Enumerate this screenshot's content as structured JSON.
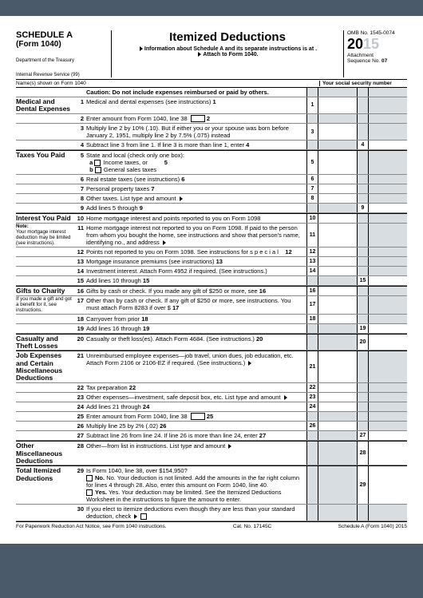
{
  "header": {
    "schedule": "SCHEDULE A",
    "form": "(Form 1040)",
    "dept": "Department of the Treasury",
    "irs": "Internal Revenue Service (99)",
    "title": "Itemized Deductions",
    "info": "Information about Schedule A and its separate instructions is at .",
    "attach": "Attach to Form 1040.",
    "omb": "OMB No. 1545-0074",
    "year_prefix": "20",
    "year_suffix": "15",
    "att": "Attachment",
    "seq": "Sequence No.",
    "seqno": "07"
  },
  "nameline": {
    "left": "Name(s) shown on Form 1040",
    "right": "Your social security number"
  },
  "sections": {
    "medical": "Medical and Dental Expenses",
    "taxes": "Taxes You Paid",
    "interest": "Interest You Paid",
    "interest_note_hdr": "Note:",
    "interest_note": "Your mortgage interest deduction may be limited (see instructions).",
    "gifts": "Gifts to Charity",
    "gifts_note": "If you made a gift and got a benefit for it, see instructions.",
    "casualty": "Casualty and Theft Losses",
    "job": "Job Expenses and Certain Miscellaneous Deductions",
    "other": "Other Miscellaneous Deductions",
    "total": "Total Itemized Deductions"
  },
  "lines": {
    "caution": "Caution: Do not include expenses reimbursed or paid by others.",
    "l1": "Medical and dental expenses (see instructions)",
    "l2": "Enter amount from Form 1040, line 38",
    "l3": "Multiply line 2 by 10% (.10). But if either you or your spouse was born before January 2, 1951, multiply line 2 by 7.5% (.075) instead",
    "l4": "Subtract line 3 from line 1. If line 3 is more than line 1, enter",
    "l5": "State and local (check only one box):",
    "l5a": "Income taxes, or",
    "l5b": "General sales taxes",
    "l6": "Real estate taxes (see instructions)",
    "l7": "Personal property taxes",
    "l8": "Other taxes. List type and amount",
    "l9": "Add lines 5 through",
    "l10": "Home mortgage interest and points reported to you on Form 1098",
    "l11": "Home mortgage interest not reported to you on Form 1098. If paid to the person from whom you bought the home, see instructions and show that person's name, identifying no., and address",
    "l12": "Points not reported to you on Form 1098. See instructions for s  p  e  c  i  a  l",
    "l13": "Mortgage insurance premiums (see instructions)",
    "l14": "Investment interest. Attach Form 4952 if required. (See instructions.)",
    "l15": "Add lines 10 through",
    "l16": "Gifts by cash or check. If you made any gift of $250 or more, see",
    "l17": "Other than by cash or check. If any gift of $250 or more, see instructions. You must attach Form 8283 if over $",
    "l18": "Carryover from prior",
    "l19": "Add lines 16 through",
    "l20": "Casualty or theft loss(es). Attach Form 4684. (See instructions.)",
    "l21": "Unreimbursed employee expenses—job travel, union dues, job education, etc. Attach Form 2106 or 2106-EZ if required. (See instructions.)",
    "l22": "Tax preparation",
    "l23": "Other expenses—investment, safe deposit box, etc. List type and amount",
    "l24": "Add lines 21 through",
    "l25": "Enter amount from Form 1040, line 38",
    "l26": "Multiply line 25 by 2% (.02)",
    "l27": "Subtract line 26 from line 24. If line 26 is more than line 24, enter",
    "l28": "Other—from list in instructions. List type and amount",
    "l29": "Is Form 1040, line 38, over $154,950?",
    "l29no": "No. Your deduction is not limited. Add the amounts in the far right column for lines 4 through 28. Also, enter this amount on Form 1040, line 40.",
    "l29yes": "Yes. Your deduction may be limited. See the Itemized Deductions Worksheet in the instructions to figure the amount to enter.",
    "l30": "If you elect to itemize deductions even though they are less than your standard deduction, check"
  },
  "nums": {
    "n1": "1",
    "n2": "2",
    "n3": "3",
    "n4": "4",
    "n5": "5",
    "n6": "6",
    "n7": "7",
    "n8": "8",
    "n9": "9",
    "n10": "10",
    "n11": "11",
    "n12": "12",
    "n13": "13",
    "n14": "14",
    "n15": "15",
    "n16": "16",
    "n17": "17",
    "n18": "18",
    "n19": "19",
    "n20": "20",
    "n21": "21",
    "n22": "22",
    "n23": "23",
    "n24": "24",
    "n25": "25",
    "n26": "26",
    "n27": "27",
    "n28": "28",
    "n29": "29",
    "n30": "30"
  },
  "footer": {
    "left": "For Paperwork Reduction Act Notice, see Form 1040 instructions.",
    "mid": "Cat. No. 17145C",
    "right": "Schedule A (Form 1040) 2015"
  },
  "colors": {
    "page_bg": "#ffffff",
    "body_bg": "#4a5a6a",
    "gray_cell": "#d8dde2",
    "year_faded": "#c0c6cc",
    "rule": "#000000"
  }
}
